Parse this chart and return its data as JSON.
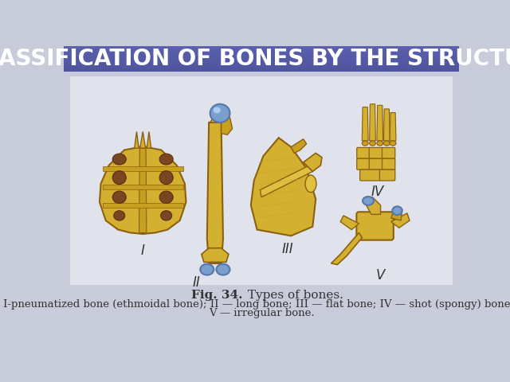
{
  "title": "CLASSIFICATION OF BONES BY THE STRUCTURE",
  "title_bg_top": "#7080b0",
  "title_bg_bottom": "#4a5a8a",
  "title_text_color": "#ffffff",
  "title_fontsize": 20,
  "body_bg_color": "#c8ccda",
  "illus_bg_color": "#e8eaf0",
  "fig_caption_bold": "Fig. 34.",
  "fig_caption_normal": " Types of bones.",
  "fig_caption_fontsize": 11,
  "description_line1": "I-pneumatized bone (ethmoidal bone); II — long bone; III — flat bone; IV — shot (spongy) bones;",
  "description_line2": "V — irregular bone.",
  "description_fontsize": 9.5,
  "label_color": "#333333",
  "label_fontsize": 12,
  "bone_yellow": "#d4b030",
  "bone_yellow2": "#c8a020",
  "bone_yellow3": "#e0c040",
  "bone_dark": "#8b6010",
  "bone_brown": "#7a4520",
  "bone_brown2": "#5a3010",
  "bone_blue": "#7a9fcc",
  "bone_blue2": "#5577aa",
  "white": "#f5f5f5",
  "caption_color": "#333333"
}
